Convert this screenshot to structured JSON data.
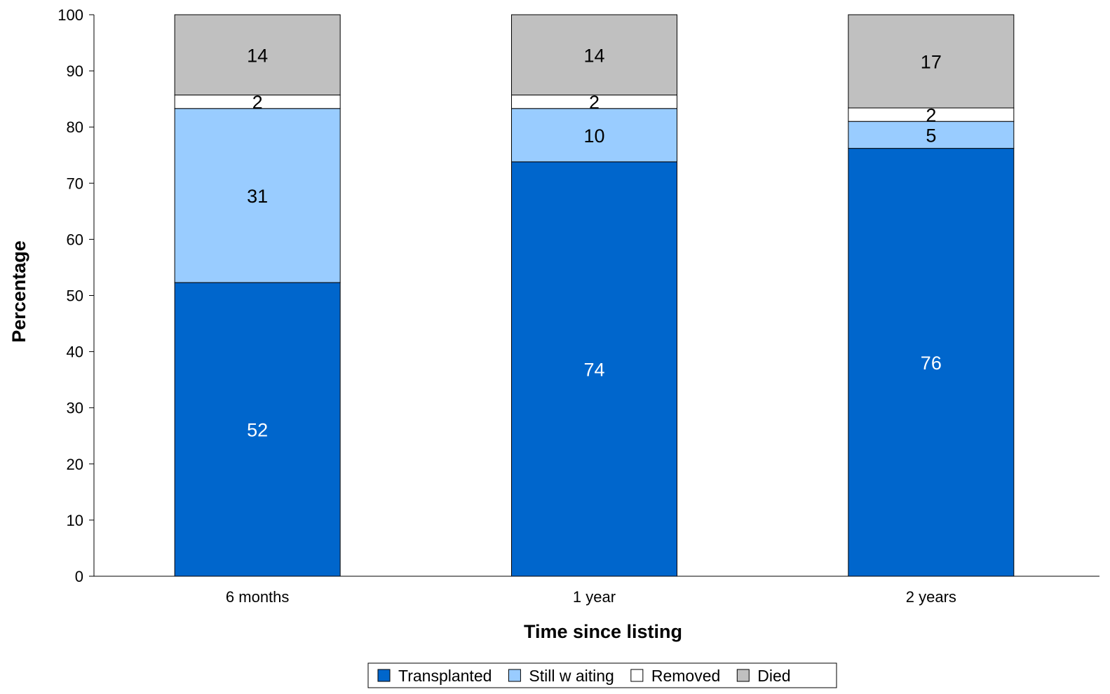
{
  "chart_data": {
    "type": "bar",
    "stacked": true,
    "title": "",
    "xlabel": "Time since listing",
    "ylabel": "Percentage",
    "ylim": [
      0,
      100
    ],
    "yticks": [
      "0",
      "10",
      "20",
      "30",
      "40",
      "50",
      "60",
      "70",
      "80",
      "90",
      "100"
    ],
    "grid": false,
    "legend_position": "bottom",
    "categories": [
      "6 months",
      "1 year",
      "2 years"
    ],
    "series": [
      {
        "name": "Transplanted",
        "color": "#0066CC",
        "values": [
          52.3,
          73.8,
          76.2
        ],
        "labels": [
          "52",
          "74",
          "76"
        ],
        "label_color": "#ffffff"
      },
      {
        "name": "Still w aiting",
        "color": "#99CCFF",
        "values": [
          31.0,
          9.5,
          4.8
        ],
        "labels": [
          "31",
          "10",
          "5"
        ],
        "label_color": "#000000"
      },
      {
        "name": "Removed",
        "color": "#ffffff",
        "values": [
          2.4,
          2.4,
          2.4
        ],
        "labels": [
          "2",
          "2",
          "2"
        ],
        "label_color": "#000000"
      },
      {
        "name": "Died",
        "color": "#C0C0C0",
        "values": [
          14.3,
          14.3,
          16.6
        ],
        "labels": [
          "14",
          "14",
          "17"
        ],
        "label_color": "#000000"
      }
    ]
  }
}
